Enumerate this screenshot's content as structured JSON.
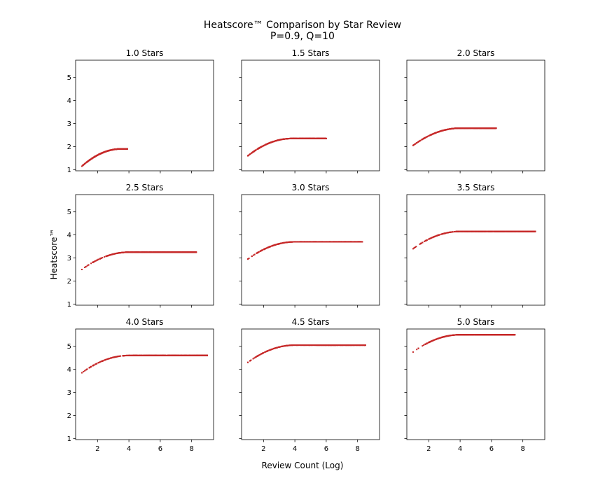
{
  "chart_data": {
    "type": "scatter",
    "title": "Heatscore™ Comparison by Star Review",
    "subtitle": "P=0.9, Q=10",
    "xlabel": "Review Count (Log)",
    "ylabel": "Heatscore™",
    "xlim": [
      0.6,
      9.4
    ],
    "ylim": [
      0.95,
      5.75
    ],
    "xticks": [
      2,
      4,
      6,
      8
    ],
    "yticks": [
      1,
      2,
      3,
      4,
      5
    ],
    "point_color": "#c62828",
    "grid": false,
    "series": [
      {
        "name": "1.0 Stars",
        "y_start": 1.15,
        "y_plateau": 1.9,
        "x_saturation": 3.5,
        "x_max": 3.9
      },
      {
        "name": "1.5 Stars",
        "y_start": 1.6,
        "y_plateau": 2.35,
        "x_saturation": 3.8,
        "x_max": 6.0
      },
      {
        "name": "2.0 Stars",
        "y_start": 2.05,
        "y_plateau": 2.8,
        "x_saturation": 4.0,
        "x_max": 6.3
      },
      {
        "name": "2.5 Stars",
        "y_start": 2.5,
        "y_plateau": 3.25,
        "x_saturation": 4.0,
        "x_max": 8.3
      },
      {
        "name": "3.0 Stars",
        "y_start": 2.95,
        "y_plateau": 3.7,
        "x_saturation": 4.0,
        "x_max": 8.3
      },
      {
        "name": "3.5 Stars",
        "y_start": 3.4,
        "y_plateau": 4.15,
        "x_saturation": 4.0,
        "x_max": 8.8
      },
      {
        "name": "4.0 Stars",
        "y_start": 3.85,
        "y_plateau": 4.6,
        "x_saturation": 4.0,
        "x_max": 9.0
      },
      {
        "name": "4.5 Stars",
        "y_start": 4.3,
        "y_plateau": 5.05,
        "x_saturation": 4.0,
        "x_max": 8.5
      },
      {
        "name": "5.0 Stars",
        "y_start": 4.75,
        "y_plateau": 5.5,
        "x_saturation": 4.0,
        "x_max": 7.5
      }
    ]
  }
}
